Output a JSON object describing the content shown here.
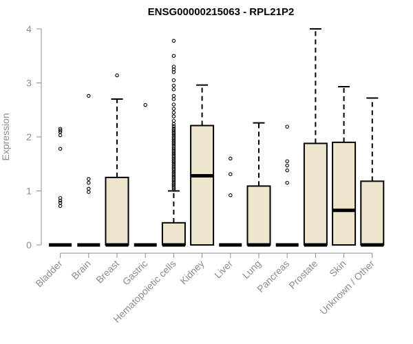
{
  "chart_data": {
    "type": "boxplot",
    "title": "ENSG00000215063 - RPL21P2",
    "xlabel": "",
    "ylabel": "Expression",
    "ylim": [
      0,
      4
    ],
    "yticks": [
      0,
      1,
      2,
      3,
      4
    ],
    "box_fill": "#ede6cc",
    "categories": [
      "Bladder",
      "Brain",
      "Breast",
      "Gastric",
      "Hematopoietic cells",
      "Kidney",
      "Liver",
      "Lung",
      "Pancreas",
      "Prostate",
      "Skin",
      "Unknown / Other"
    ],
    "boxes": [
      {
        "q1": 0,
        "median": 0,
        "q3": 0,
        "whisker_low": 0,
        "whisker_high": 0,
        "outliers": [
          0.72,
          0.78,
          0.82,
          0.87,
          1.78,
          2.03,
          2.09,
          2.12,
          2.15
        ]
      },
      {
        "q1": 0,
        "median": 0,
        "q3": 0,
        "whisker_low": 0,
        "whisker_high": 0,
        "outliers": [
          0.98,
          1.04,
          1.15,
          1.22,
          2.76
        ]
      },
      {
        "q1": 0,
        "median": 0,
        "q3": 1.25,
        "whisker_low": 0,
        "whisker_high": 2.7,
        "outliers": [
          3.14
        ]
      },
      {
        "q1": 0,
        "median": 0,
        "q3": 0,
        "whisker_low": 0,
        "whisker_high": 0,
        "outliers": [
          2.59
        ]
      },
      {
        "q1": 0,
        "median": 0,
        "q3": 0.41,
        "whisker_low": 0,
        "whisker_high": 1.0,
        "outliers": [
          1.02,
          1.05,
          1.08,
          1.11,
          1.14,
          1.17,
          1.2,
          1.23,
          1.26,
          1.29,
          1.32,
          1.35,
          1.38,
          1.41,
          1.44,
          1.47,
          1.5,
          1.53,
          1.56,
          1.59,
          1.62,
          1.65,
          1.68,
          1.71,
          1.74,
          1.77,
          1.8,
          1.83,
          1.86,
          1.89,
          1.92,
          1.95,
          1.98,
          2.01,
          2.04,
          2.07,
          2.1,
          2.13,
          2.16,
          2.2,
          2.24,
          2.3,
          2.38,
          2.45,
          2.52,
          2.6,
          2.7,
          2.76,
          2.88,
          2.95,
          3.05,
          3.2,
          3.25,
          3.3,
          3.5,
          3.78
        ]
      },
      {
        "q1": 0,
        "median": 1.28,
        "q3": 2.21,
        "whisker_low": 0,
        "whisker_high": 2.96,
        "outliers": []
      },
      {
        "q1": 0,
        "median": 0,
        "q3": 0,
        "whisker_low": 0,
        "whisker_high": 0,
        "outliers": [
          0.92,
          1.31,
          1.6
        ]
      },
      {
        "q1": 0,
        "median": 0,
        "q3": 1.09,
        "whisker_low": 0,
        "whisker_high": 2.26,
        "outliers": []
      },
      {
        "q1": 0,
        "median": 0,
        "q3": 0,
        "whisker_low": 0,
        "whisker_high": 0,
        "outliers": [
          1.15,
          1.38,
          1.47,
          1.55,
          2.19
        ]
      },
      {
        "q1": 0,
        "median": 0,
        "q3": 1.88,
        "whisker_low": 0,
        "whisker_high": 4.0,
        "outliers": []
      },
      {
        "q1": 0,
        "median": 0.64,
        "q3": 1.9,
        "whisker_low": 0,
        "whisker_high": 2.93,
        "outliers": []
      },
      {
        "q1": 0,
        "median": 0,
        "q3": 1.18,
        "whisker_low": 0,
        "whisker_high": 2.72,
        "outliers": []
      }
    ]
  }
}
